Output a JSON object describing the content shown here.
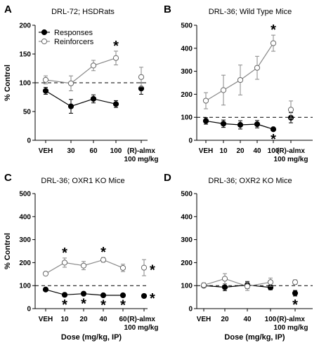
{
  "chart_data": [
    {
      "panel": "A",
      "title": "DRL-72; HSDRats",
      "type": "line",
      "ylabel": "% Control",
      "xlabel": "",
      "ylim": [
        0,
        200
      ],
      "yticks": [
        0,
        50,
        100,
        150,
        200
      ],
      "reference_line": 100,
      "categories": [
        "VEH",
        "30",
        "60",
        "100",
        "(R)-almx\n100 mg/kg"
      ],
      "legend": {
        "placement": "top-left",
        "entries": [
          "Responses",
          "Reinforcers"
        ]
      },
      "series": [
        {
          "name": "Responses",
          "marker": "filled-circle",
          "connected_points": 4,
          "values": [
            86,
            59,
            72,
            63,
            90
          ],
          "errors": [
            6,
            12,
            7,
            6,
            10
          ]
        },
        {
          "name": "Reinforcers",
          "marker": "open-circle",
          "connected_points": 4,
          "values": [
            105,
            99,
            130,
            143,
            110
          ],
          "errors": [
            7,
            13,
            9,
            12,
            17
          ]
        }
      ],
      "significance": [
        {
          "series": "Reinforcers",
          "index": 3,
          "position": "above"
        }
      ]
    },
    {
      "panel": "B",
      "title": "DRL-36; Wild Type Mice",
      "type": "line",
      "ylabel": "",
      "xlabel": "",
      "ylim": [
        0,
        500
      ],
      "yticks": [
        0,
        100,
        200,
        300,
        400,
        500
      ],
      "reference_line": 100,
      "categories": [
        "VEH",
        "10",
        "20",
        "40",
        "100",
        "(R)-almx\n100 mg/kg"
      ],
      "series": [
        {
          "name": "Responses",
          "marker": "filled-circle",
          "connected_points": 5,
          "values": [
            84,
            72,
            67,
            70,
            48,
            98
          ],
          "errors": [
            14,
            16,
            18,
            16,
            5,
            22
          ]
        },
        {
          "name": "Reinforcers",
          "marker": "open-circle",
          "connected_points": 5,
          "values": [
            172,
            218,
            262,
            315,
            422,
            133
          ],
          "errors": [
            35,
            65,
            65,
            50,
            35,
            38
          ]
        }
      ],
      "significance": [
        {
          "series": "Reinforcers",
          "index": 4,
          "position": "above"
        },
        {
          "series": "Responses",
          "index": 4,
          "position": "below"
        }
      ]
    },
    {
      "panel": "C",
      "title": "DRL-36; OXR1 KO Mice",
      "type": "line",
      "ylabel": "% Control",
      "xlabel": "Dose (mg/kg, IP)",
      "ylim": [
        0,
        500
      ],
      "yticks": [
        0,
        100,
        200,
        300,
        400,
        500
      ],
      "reference_line": 100,
      "categories": [
        "VEH",
        "10",
        "20",
        "40",
        "60",
        "(R)-almx\n100 mg/kg"
      ],
      "series": [
        {
          "name": "Responses",
          "marker": "filled-circle",
          "connected_points": 5,
          "values": [
            83,
            60,
            65,
            58,
            58,
            55
          ],
          "errors": [
            5,
            5,
            5,
            5,
            5,
            5
          ]
        },
        {
          "name": "Reinforcers",
          "marker": "open-circle",
          "connected_points": 5,
          "values": [
            152,
            200,
            187,
            212,
            177,
            178
          ],
          "errors": [
            8,
            20,
            18,
            10,
            16,
            35
          ]
        }
      ],
      "significance": [
        {
          "series": "Reinforcers",
          "index": 1,
          "position": "above"
        },
        {
          "series": "Reinforcers",
          "index": 3,
          "position": "above"
        },
        {
          "series": "Reinforcers",
          "index": 5,
          "position": "right"
        },
        {
          "series": "Responses",
          "index": 1,
          "position": "below"
        },
        {
          "series": "Responses",
          "index": 2,
          "position": "below"
        },
        {
          "series": "Responses",
          "index": 3,
          "position": "below"
        },
        {
          "series": "Responses",
          "index": 4,
          "position": "below"
        },
        {
          "series": "Responses",
          "index": 5,
          "position": "right"
        }
      ]
    },
    {
      "panel": "D",
      "title": "DRL-36; OXR2 KO Mice",
      "type": "line",
      "ylabel": "",
      "xlabel": "Dose (mg/kg, IP)",
      "ylim": [
        0,
        500
      ],
      "yticks": [
        0,
        100,
        200,
        300,
        400,
        500
      ],
      "reference_line": 100,
      "categories": [
        "VEH",
        "20",
        "40",
        "100",
        "(R)-almx\n100 mg/kg"
      ],
      "series": [
        {
          "name": "Responses",
          "marker": "filled-circle",
          "connected_points": 4,
          "values": [
            100,
            93,
            103,
            92,
            67
          ],
          "errors": [
            8,
            15,
            15,
            10,
            12
          ]
        },
        {
          "name": "Reinforcers",
          "marker": "open-circle",
          "connected_points": 4,
          "values": [
            102,
            130,
            97,
            115,
            115
          ],
          "errors": [
            10,
            22,
            18,
            18,
            10
          ]
        }
      ],
      "significance": [
        {
          "series": "Responses",
          "index": 4,
          "position": "below"
        }
      ]
    }
  ]
}
